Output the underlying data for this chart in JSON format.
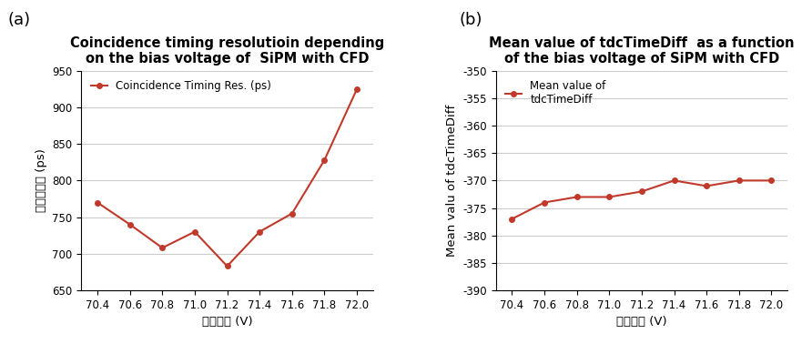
{
  "x_values": [
    70.4,
    70.6,
    70.8,
    71.0,
    71.2,
    71.4,
    71.6,
    71.8,
    72.0
  ],
  "x_labels": [
    "70.4",
    "70.6",
    "70.8",
    "71.0",
    "71.2",
    "71.4",
    "71.6",
    "71.8",
    "72.0"
  ],
  "chart_a": {
    "y_values": [
      770,
      740,
      708,
      730,
      683,
      730,
      755,
      828,
      925
    ],
    "ylabel": "시간분해능 (ps)",
    "xlabel": "공급전압 (V)",
    "title_line1": "Coincidence timing resolutioin depending",
    "title_line2": "on the bias voltage of  SiPM with CFD",
    "ylim": [
      650,
      950
    ],
    "yticks": [
      650,
      700,
      750,
      800,
      850,
      900,
      950
    ],
    "legend_label": "Coincidence Timing Res. (ps)",
    "panel_label": "(a)"
  },
  "chart_b": {
    "y_values": [
      -377,
      -374,
      -373,
      -373,
      -372,
      -370,
      -371,
      -370,
      -370
    ],
    "ylabel": "Mean valu of tdcTimeDiff",
    "xlabel": "공급전압 (V)",
    "title_line1": "Mean value of tdcTimeDiff  as a function",
    "title_line2": "of the bias voltage of SiPM with CFD",
    "ylim": [
      -390,
      -350
    ],
    "yticks": [
      -390,
      -385,
      -380,
      -375,
      -370,
      -365,
      -360,
      -355,
      -350
    ],
    "legend_label": "Mean value of\ntdcTimeDiff",
    "panel_label": "(b)"
  },
  "line_color": "#c0392b",
  "marker": "o",
  "markersize": 4,
  "linewidth": 1.5,
  "background_color": "#ffffff",
  "grid_color": "#cccccc",
  "title_fontsize": 10.5,
  "label_fontsize": 9.5,
  "tick_fontsize": 8.5,
  "legend_fontsize": 8.5,
  "panel_fontsize": 13
}
